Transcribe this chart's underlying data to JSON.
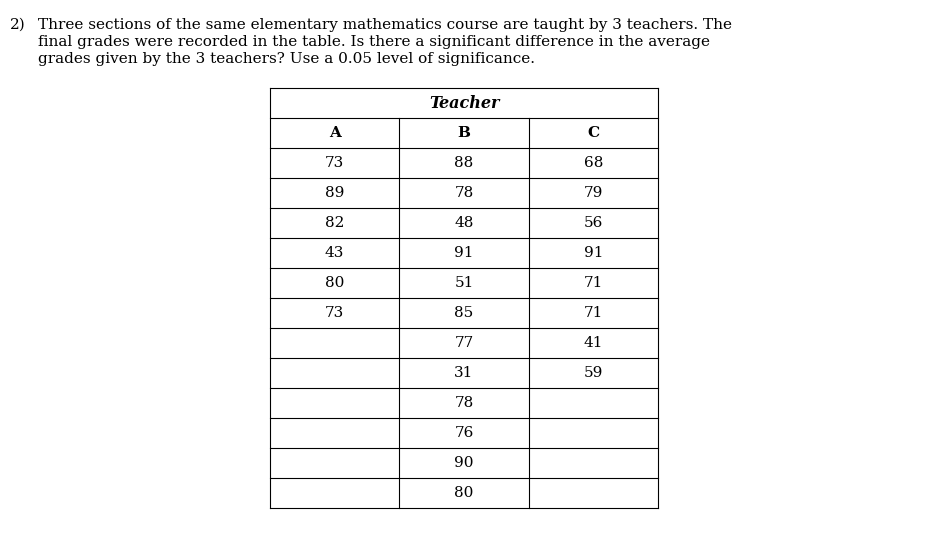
{
  "title_number": "2)",
  "title_text": "Three sections of the same elementary mathematics course are taught by 3 teachers. The\nfinal grades were recorded in the table. Is there a significant difference in the average\ngrades given by the 3 teachers? Use a 0.05 level of significance.",
  "table_header_label": "Teacher",
  "col_headers": [
    "A",
    "B",
    "C"
  ],
  "col_A": [
    73,
    89,
    82,
    43,
    80,
    73,
    "",
    "",
    "",
    "",
    "",
    ""
  ],
  "col_B": [
    88,
    78,
    48,
    91,
    51,
    85,
    77,
    31,
    78,
    76,
    90,
    80
  ],
  "col_C": [
    68,
    79,
    56,
    91,
    71,
    71,
    41,
    59,
    "",
    "",
    "",
    ""
  ],
  "bg_color": "#ffffff",
  "text_color": "#000000",
  "title_fontsize": 11.0,
  "table_fontsize": 11.0,
  "header_italic_fontsize": 11.5
}
